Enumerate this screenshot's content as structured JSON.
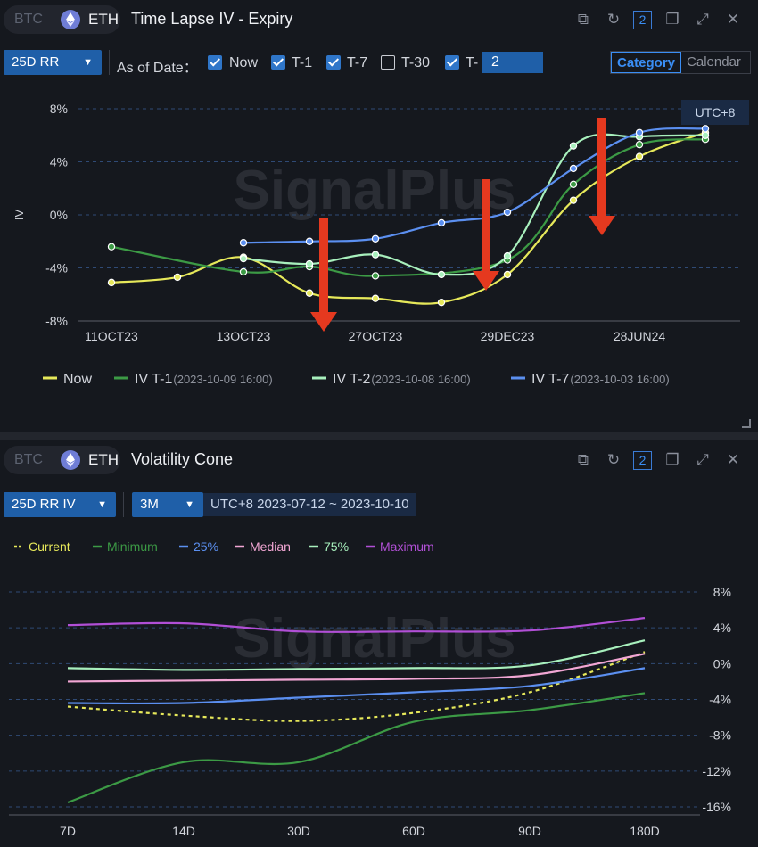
{
  "panel1": {
    "coin_btc": "BTC",
    "coin_eth": "ETH",
    "title": "Time Lapse IV - Expiry",
    "tools_count": "2",
    "metric_select": "25D RR",
    "as_of_label": "As of Date：",
    "checks": [
      {
        "label": "Now",
        "checked": true
      },
      {
        "label": "T-1",
        "checked": true
      },
      {
        "label": "T-7",
        "checked": true
      },
      {
        "label": "T-30",
        "checked": false
      },
      {
        "label": "T-",
        "checked": true
      }
    ],
    "custom_days": "2",
    "mode_category": "Category",
    "mode_calendar": "Calendar",
    "timezone": "UTC+8",
    "watermark": "SignalPlus"
  },
  "panel2": {
    "coin_btc": "BTC",
    "coin_eth": "ETH",
    "title": "Volatility Cone",
    "tools_count": "2",
    "metric_select": "25D RR IV",
    "period_select": "3M",
    "range": "UTC+8 2023-07-12 ~ 2023-10-10",
    "watermark": "SignalPlus"
  },
  "chart_data": [
    {
      "type": "line",
      "title": "Time Lapse IV - Expiry",
      "ylabel": "IV",
      "x_ticks": [
        "11OCT23",
        "13OCT23",
        "27OCT23",
        "29DEC23",
        "28JUN24"
      ],
      "y_ticks": [
        "8%",
        "4%",
        "0%",
        "-4%",
        "-8%"
      ],
      "ylim": [
        -8,
        8
      ],
      "grid": "dashed horizontal",
      "legend_position": "bottom",
      "series": [
        {
          "name": "Now",
          "color": "#e6e85a",
          "points": [
            [
              0,
              -5.1
            ],
            [
              1,
              -4.7
            ],
            [
              2,
              -3.2
            ],
            [
              3,
              -5.9
            ],
            [
              4,
              -6.3
            ],
            [
              5,
              -6.6
            ],
            [
              6,
              -4.5
            ],
            [
              7,
              1.1
            ],
            [
              8,
              4.4
            ],
            [
              9,
              6.2
            ]
          ]
        },
        {
          "name": "IV T-1",
          "note": "(2023-10-09 16:00)",
          "color": "#3c9a45",
          "points": [
            [
              0,
              -2.4
            ],
            [
              2,
              -4.3
            ],
            [
              3,
              -3.9
            ],
            [
              4,
              -4.6
            ],
            [
              6,
              -3.4
            ],
            [
              7,
              2.3
            ],
            [
              8,
              5.3
            ],
            [
              9,
              5.7
            ]
          ]
        },
        {
          "name": "IV T-2",
          "note": "(2023-10-08 16:00)",
          "color": "#a8f0bd",
          "points": [
            [
              2,
              -3.3
            ],
            [
              3,
              -3.7
            ],
            [
              4,
              -3.0
            ],
            [
              5,
              -4.5
            ],
            [
              6,
              -3.1
            ],
            [
              7,
              5.2
            ],
            [
              8,
              5.9
            ],
            [
              9,
              6.0
            ]
          ]
        },
        {
          "name": "IV T-7",
          "note": "(2023-10-03 16:00)",
          "color": "#5b8ff0",
          "points": [
            [
              2,
              -2.1
            ],
            [
              3,
              -2.0
            ],
            [
              4,
              -1.8
            ],
            [
              5,
              -0.6
            ],
            [
              6,
              0.2
            ],
            [
              7,
              3.5
            ],
            [
              8,
              6.2
            ],
            [
              9,
              6.5
            ]
          ]
        }
      ],
      "annotations": [
        "three red down arrows"
      ]
    },
    {
      "type": "line",
      "title": "Volatility Cone",
      "categories": [
        "7D",
        "14D",
        "30D",
        "60D",
        "90D",
        "180D"
      ],
      "y_ticks": [
        "8%",
        "4%",
        "0%",
        "-4%",
        "-8%",
        "-12%",
        "-16%"
      ],
      "ylim": [
        -16,
        8
      ],
      "y_axis_side": "right",
      "grid": "dashed horizontal",
      "legend_position": "top",
      "series": [
        {
          "name": "Current",
          "color": "#e6e85a",
          "dashed": true,
          "values": [
            -4.8,
            -5.8,
            -6.4,
            -5.5,
            -3.2,
            1.3
          ]
        },
        {
          "name": "Minimum",
          "color": "#3c9a45",
          "values": [
            -15.5,
            -11.0,
            -11.0,
            -6.5,
            -5.2,
            -3.3
          ]
        },
        {
          "name": "25%",
          "color": "#5b8ff0",
          "values": [
            -4.4,
            -4.4,
            -3.8,
            -3.2,
            -2.5,
            -0.5
          ]
        },
        {
          "name": "Median",
          "color": "#f2a6d4",
          "values": [
            -2.0,
            -1.9,
            -1.8,
            -1.7,
            -1.3,
            1.1
          ]
        },
        {
          "name": "75%",
          "color": "#a8f0bd",
          "values": [
            -0.5,
            -0.7,
            -0.6,
            -0.5,
            -0.2,
            2.6
          ]
        },
        {
          "name": "Maximum",
          "color": "#b14fd6",
          "values": [
            4.3,
            4.5,
            3.6,
            3.6,
            3.7,
            5.1
          ]
        }
      ]
    }
  ]
}
